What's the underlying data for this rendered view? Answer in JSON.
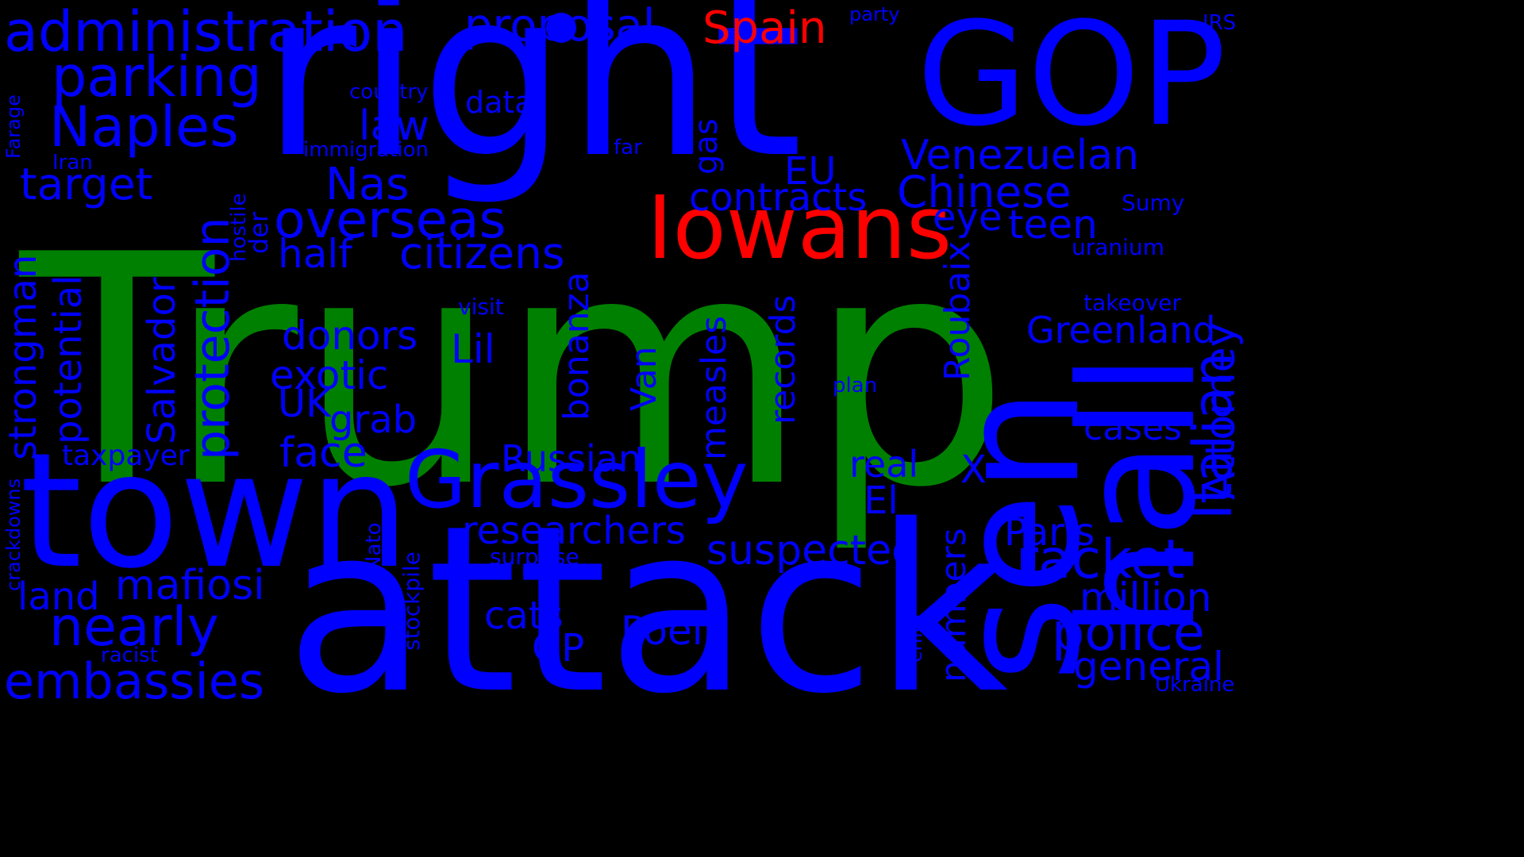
{
  "background_color": "#000000",
  "colors": {
    "primary": "#0000ff",
    "highlight": "#ff0000",
    "top": "#008000"
  },
  "words": [
    {
      "text": "Trump",
      "color": "top"
    },
    {
      "text": "right",
      "color": "primary"
    },
    {
      "text": "attack",
      "color": "primary"
    },
    {
      "text": "GOP",
      "color": "primary"
    },
    {
      "text": "town",
      "color": "primary"
    },
    {
      "text": "sen",
      "color": "primary"
    },
    {
      "text": "hall",
      "color": "primary"
    },
    {
      "text": "Iowans",
      "color": "highlight"
    },
    {
      "text": "Grassley",
      "color": "primary"
    },
    {
      "text": "administration",
      "color": "primary"
    },
    {
      "text": "proposal",
      "color": "primary"
    },
    {
      "text": "Spain",
      "color": "highlight"
    },
    {
      "text": "party",
      "color": "primary"
    },
    {
      "text": "IRS",
      "color": "primary"
    },
    {
      "text": "parking",
      "color": "primary"
    },
    {
      "text": "Naples",
      "color": "primary"
    },
    {
      "text": "country",
      "color": "primary"
    },
    {
      "text": "data",
      "color": "primary"
    },
    {
      "text": "law",
      "color": "primary"
    },
    {
      "text": "immigration",
      "color": "primary"
    },
    {
      "text": "far",
      "color": "primary"
    },
    {
      "text": "gas",
      "color": "primary"
    },
    {
      "text": "Venezuelan",
      "color": "primary"
    },
    {
      "text": "Italian",
      "color": "primary"
    },
    {
      "text": "Farage",
      "color": "primary"
    },
    {
      "text": "Iran",
      "color": "primary"
    },
    {
      "text": "target",
      "color": "primary"
    },
    {
      "text": "Nas",
      "color": "primary"
    },
    {
      "text": "EU",
      "color": "primary"
    },
    {
      "text": "contracts",
      "color": "primary"
    },
    {
      "text": "Chinese",
      "color": "primary"
    },
    {
      "text": "Sumy",
      "color": "primary"
    },
    {
      "text": "overseas",
      "color": "primary"
    },
    {
      "text": "der",
      "color": "primary"
    },
    {
      "text": "hostile",
      "color": "primary"
    },
    {
      "text": "eye",
      "color": "primary"
    },
    {
      "text": "teen",
      "color": "primary"
    },
    {
      "text": "half",
      "color": "primary"
    },
    {
      "text": "citizens",
      "color": "primary"
    },
    {
      "text": "uranium",
      "color": "primary"
    },
    {
      "text": "protection",
      "color": "primary"
    },
    {
      "text": "strongman",
      "color": "primary"
    },
    {
      "text": "potential",
      "color": "primary"
    },
    {
      "text": "Salvador",
      "color": "primary"
    },
    {
      "text": "visit",
      "color": "primary"
    },
    {
      "text": "records",
      "color": "primary"
    },
    {
      "text": "Roubaix",
      "color": "primary"
    },
    {
      "text": "takeover",
      "color": "primary"
    },
    {
      "text": "Attorney",
      "color": "primary"
    },
    {
      "text": "donors",
      "color": "primary"
    },
    {
      "text": "Lil",
      "color": "primary"
    },
    {
      "text": "bonanza",
      "color": "primary"
    },
    {
      "text": "Greenland",
      "color": "primary"
    },
    {
      "text": "measles",
      "color": "primary"
    },
    {
      "text": "exotic",
      "color": "primary"
    },
    {
      "text": "Van",
      "color": "primary"
    },
    {
      "text": "plan",
      "color": "primary"
    },
    {
      "text": "UK",
      "color": "primary"
    },
    {
      "text": "grab",
      "color": "primary"
    },
    {
      "text": "cases",
      "color": "primary"
    },
    {
      "text": "taxpayer",
      "color": "primary"
    },
    {
      "text": "face",
      "color": "primary"
    },
    {
      "text": "Russian",
      "color": "primary"
    },
    {
      "text": "real",
      "color": "primary"
    },
    {
      "text": "X",
      "color": "primary"
    },
    {
      "text": "El",
      "color": "primary"
    },
    {
      "text": "crackdowns",
      "color": "primary"
    },
    {
      "text": "Nato",
      "color": "primary"
    },
    {
      "text": "researchers",
      "color": "primary"
    },
    {
      "text": "Paris",
      "color": "primary"
    },
    {
      "text": "suspected",
      "color": "primary"
    },
    {
      "text": "racket",
      "color": "primary"
    },
    {
      "text": "surprise",
      "color": "primary"
    },
    {
      "text": "stockpile",
      "color": "primary"
    },
    {
      "text": "mafiosi",
      "color": "primary"
    },
    {
      "text": "land",
      "color": "primary"
    },
    {
      "text": "million",
      "color": "primary"
    },
    {
      "text": "numbers",
      "color": "primary"
    },
    {
      "text": "nearly",
      "color": "primary"
    },
    {
      "text": "cats",
      "color": "primary"
    },
    {
      "text": "Poel",
      "color": "primary"
    },
    {
      "text": "police",
      "color": "primary"
    },
    {
      "text": "GP",
      "color": "primary"
    },
    {
      "text": "chief",
      "color": "primary"
    },
    {
      "text": "racist",
      "color": "primary"
    },
    {
      "text": "general",
      "color": "primary"
    },
    {
      "text": "embassies",
      "color": "primary"
    },
    {
      "text": "Ukraine",
      "color": "primary"
    }
  ]
}
